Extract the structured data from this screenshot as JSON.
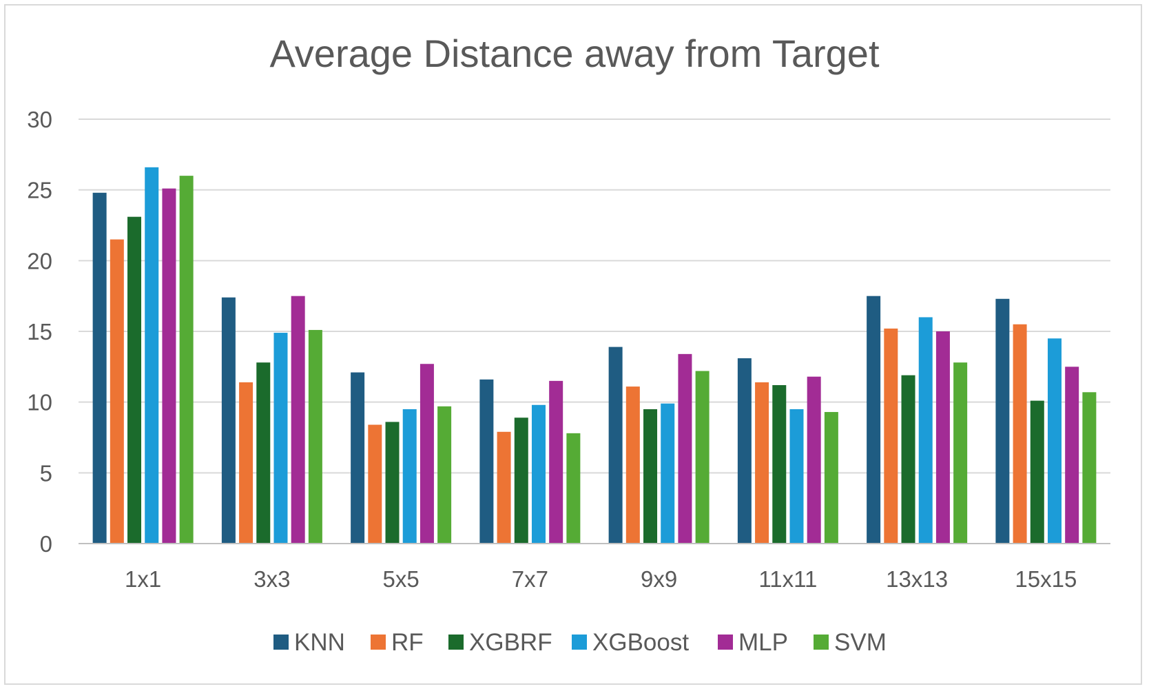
{
  "chart_data": {
    "type": "bar",
    "title": "Average Distance away from Target",
    "xlabel": "",
    "ylabel": "",
    "ylim": [
      0,
      30
    ],
    "yticks": [
      0,
      5,
      10,
      15,
      20,
      25,
      30
    ],
    "grid": true,
    "legend_position": "bottom",
    "categories": [
      "1x1",
      "3x3",
      "5x5",
      "7x7",
      "9x9",
      "11x11",
      "13x13",
      "15x15"
    ],
    "series": [
      {
        "name": "KNN",
        "color": "#1f5c82",
        "values": [
          24.8,
          17.4,
          12.1,
          11.6,
          13.9,
          13.1,
          17.5,
          17.3
        ]
      },
      {
        "name": "RF",
        "color": "#ed7434",
        "values": [
          21.5,
          11.4,
          8.4,
          7.9,
          11.1,
          11.4,
          15.2,
          15.5
        ]
      },
      {
        "name": "XGBRF",
        "color": "#1b6b2c",
        "values": [
          23.1,
          12.8,
          8.6,
          8.9,
          9.5,
          11.2,
          11.9,
          10.1
        ]
      },
      {
        "name": "XGBoost",
        "color": "#1c9cd8",
        "values": [
          26.6,
          14.9,
          9.5,
          9.8,
          9.9,
          9.5,
          16.0,
          14.5
        ]
      },
      {
        "name": "MLP",
        "color": "#a22c95",
        "values": [
          25.1,
          17.5,
          12.7,
          11.5,
          13.4,
          11.8,
          15.0,
          12.5
        ]
      },
      {
        "name": "SVM",
        "color": "#55ab35",
        "values": [
          26.0,
          15.1,
          9.7,
          7.8,
          12.2,
          9.3,
          12.8,
          10.7
        ]
      }
    ]
  }
}
